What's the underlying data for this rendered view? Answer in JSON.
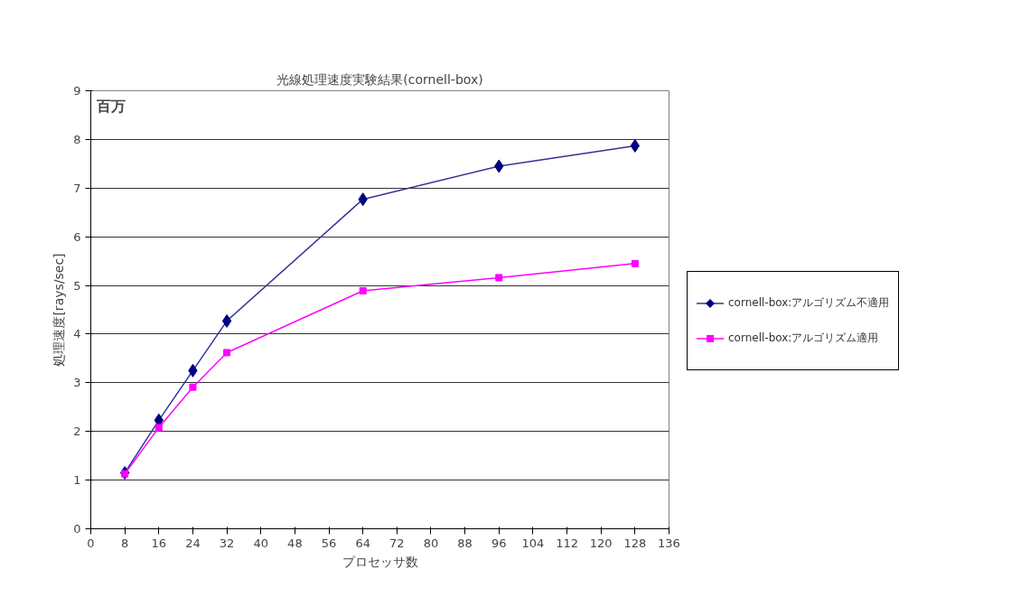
{
  "chart_data": {
    "type": "line",
    "title": "光線処理速度実験結果(cornell-box)",
    "xlabel": "プロセッサ数",
    "ylabel": "処理速度[rays/sec]",
    "annotations": [
      "百万"
    ],
    "x": [
      8,
      16,
      24,
      32,
      64,
      96,
      128
    ],
    "series": [
      {
        "name": "cornell-box:アルゴリズム不適用",
        "color": "#333399",
        "marker": "diamond",
        "values": [
          1.15,
          2.23,
          3.25,
          4.27,
          6.77,
          7.45,
          7.87
        ]
      },
      {
        "name": "cornell-box:アルゴリズム適用",
        "color": "#ff00ff",
        "marker": "square",
        "values": [
          1.13,
          2.08,
          2.91,
          3.62,
          4.89,
          5.16,
          5.45
        ]
      }
    ],
    "xlim": [
      0,
      136
    ],
    "xticks": [
      0,
      8,
      16,
      24,
      32,
      40,
      48,
      56,
      64,
      72,
      80,
      88,
      96,
      104,
      112,
      120,
      128,
      136
    ],
    "ylim": [
      0,
      9
    ],
    "yticks": [
      0,
      1,
      2,
      3,
      4,
      5,
      6,
      7,
      8,
      9
    ],
    "grid": "y",
    "legend": "right",
    "line_style": "solid"
  }
}
